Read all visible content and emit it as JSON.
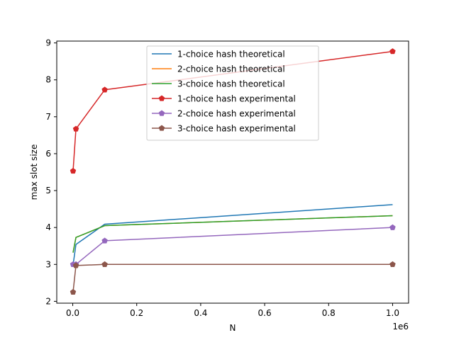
{
  "chart_data": {
    "type": "line",
    "title": "",
    "xlabel": "N",
    "ylabel": "max slot size",
    "x_offset_label": "1e6",
    "xlim": [
      -50000,
      1050000
    ],
    "ylim": [
      1.95,
      9.05
    ],
    "x_ticks": [
      0,
      200000,
      400000,
      600000,
      800000,
      1000000
    ],
    "x_tick_labels": [
      "0.0",
      "0.2",
      "0.4",
      "0.6",
      "0.8",
      "1.0"
    ],
    "y_ticks": [
      2,
      3,
      4,
      5,
      6,
      7,
      8,
      9
    ],
    "y_tick_labels": [
      "2",
      "3",
      "4",
      "5",
      "6",
      "7",
      "8",
      "9"
    ],
    "grid": false,
    "legend_position": "upper-center",
    "series": [
      {
        "name": "1-choice hash theoretical",
        "color": "#1f77b4",
        "marker": "none",
        "x": [
          1000,
          10000,
          100000,
          1000000
        ],
        "y": [
          2.98,
          3.54,
          4.09,
          4.62
        ]
      },
      {
        "name": "2-choice hash theoretical",
        "color": "#ff7f0e",
        "marker": "none",
        "x": [
          1000,
          10000,
          100000,
          1000000
        ],
        "y": [
          3.32,
          3.73,
          4.05,
          4.32
        ]
      },
      {
        "name": "3-choice hash theoretical",
        "color": "#2ca02c",
        "marker": "none",
        "x": [
          1000,
          10000,
          100000,
          1000000
        ],
        "y": [
          3.32,
          3.73,
          4.05,
          4.32
        ]
      },
      {
        "name": "1-choice hash experimental",
        "color": "#d62728",
        "marker": "pentagon",
        "x": [
          1000,
          10000,
          100000,
          1000000
        ],
        "y": [
          5.53,
          6.67,
          7.73,
          8.77
        ]
      },
      {
        "name": "2-choice hash experimental",
        "color": "#9467bd",
        "marker": "pentagon",
        "x": [
          1000,
          10000,
          100000,
          1000000
        ],
        "y": [
          3.0,
          3.0,
          3.64,
          4.0
        ]
      },
      {
        "name": "3-choice hash experimental",
        "color": "#8c564b",
        "marker": "pentagon",
        "x": [
          1000,
          10000,
          100000,
          1000000
        ],
        "y": [
          2.25,
          2.97,
          3.0,
          3.0
        ]
      }
    ]
  }
}
